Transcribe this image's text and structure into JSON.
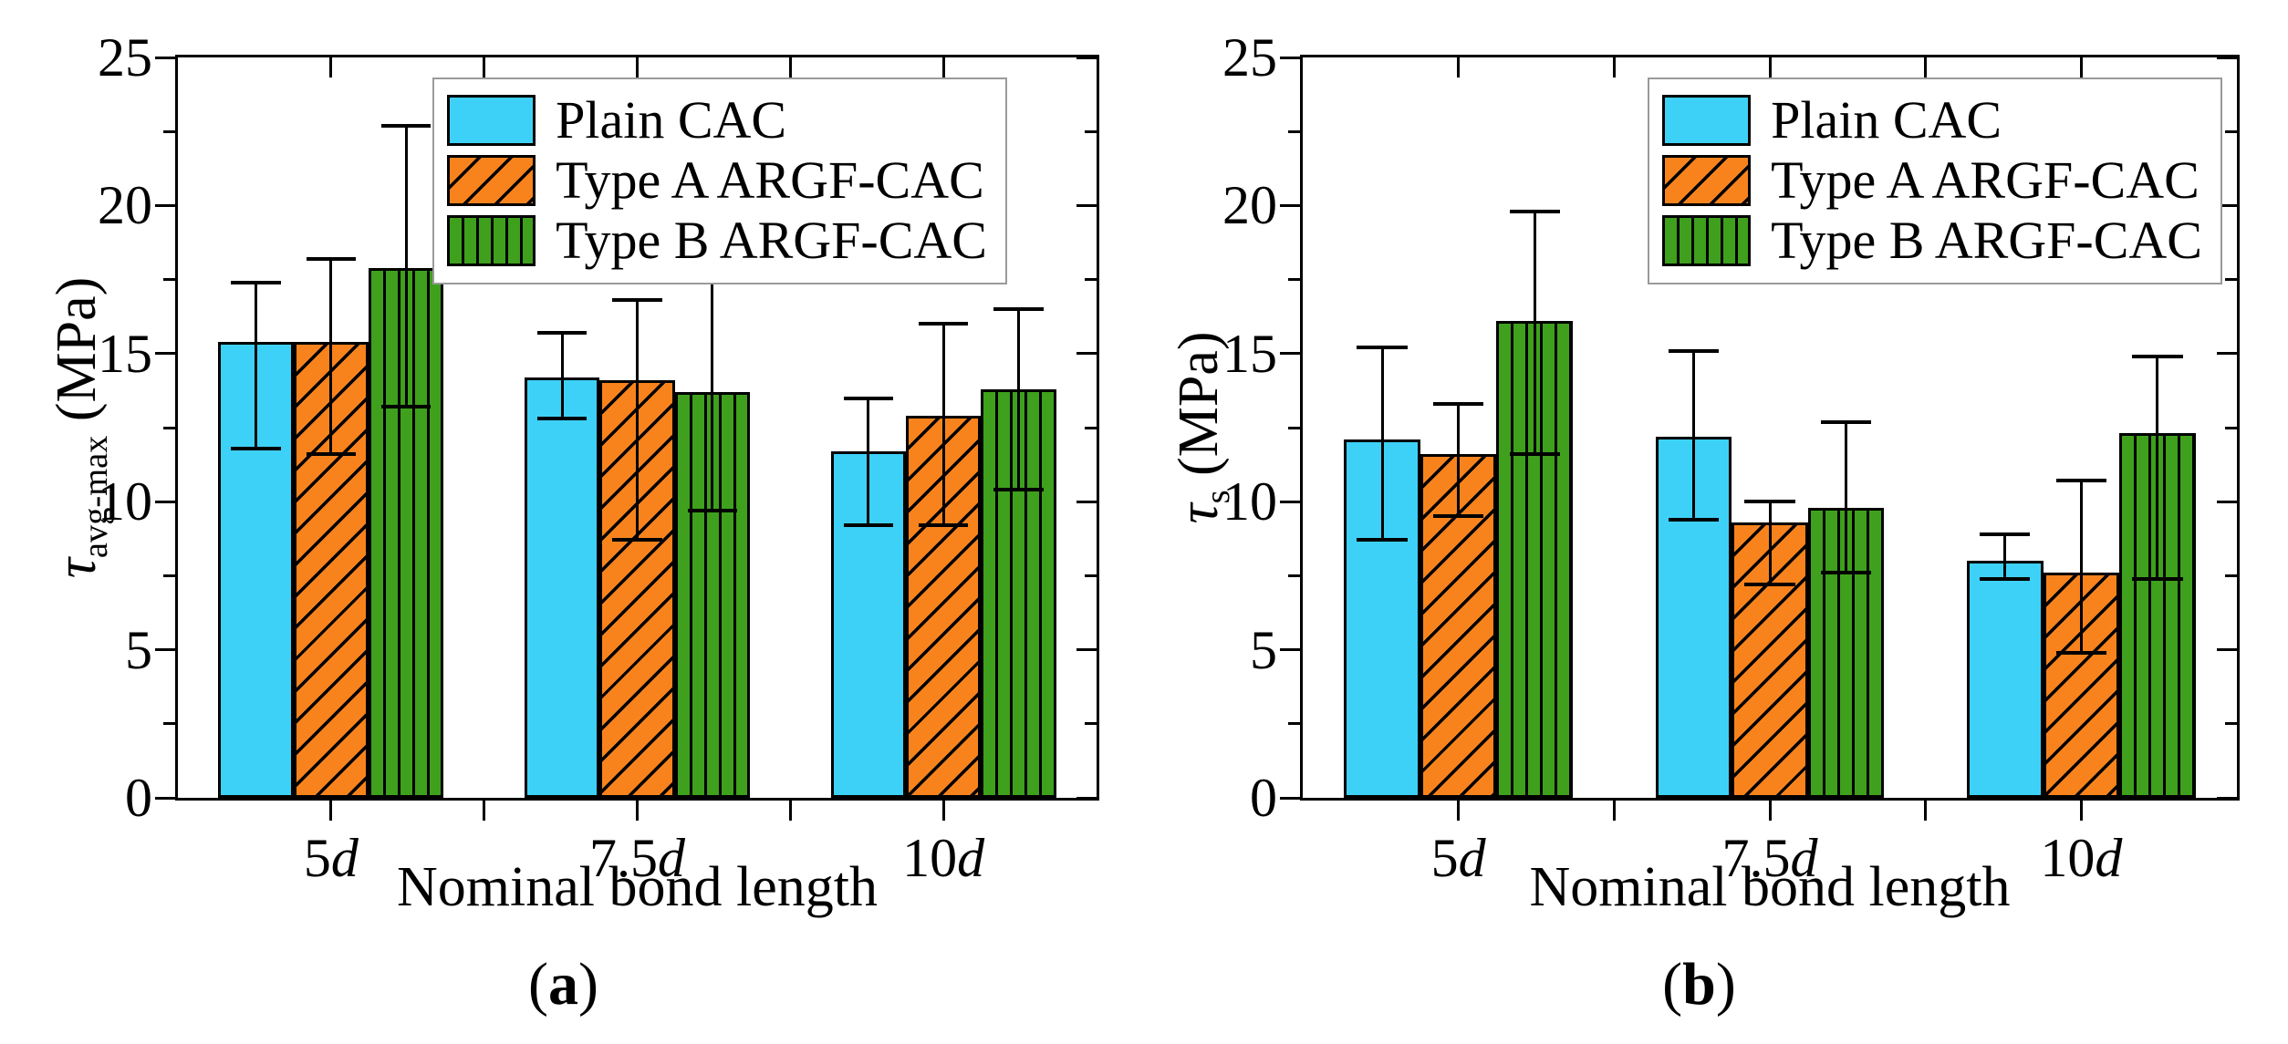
{
  "figure": {
    "legend": [
      "Plain CAC",
      "Type A ARGF-CAC",
      "Type B ARGF-CAC"
    ],
    "panels": [
      {
        "caption_open": "(",
        "caption_letter": "a",
        "caption_close": ")",
        "y_axis": {
          "sym": "τ",
          "sub": "avg-max",
          "unit": " (MPa)"
        },
        "x_axis_title": "Nominal bond length"
      },
      {
        "caption_open": "(",
        "caption_letter": "b",
        "caption_close": ")",
        "y_axis": {
          "sym": "τ",
          "sub": "s",
          "unit": " (MPa)"
        },
        "x_axis_title": "Nominal bond length"
      }
    ]
  },
  "chart_data": [
    {
      "type": "bar",
      "title": "",
      "xlabel": "Nominal bond length",
      "ylabel": "tau_avg-max (MPa)",
      "ylim": [
        0,
        25
      ],
      "ytick_major": 5,
      "ytick_minor": 2.5,
      "grid": false,
      "legend_position": "top-right-inside",
      "categories": [
        "5d",
        "7.5d",
        "10d"
      ],
      "series": [
        {
          "name": "Plain CAC",
          "color": "#3ED1F8",
          "hatch": "none",
          "values": [
            15.4,
            14.2,
            11.7
          ],
          "err_low": [
            11.8,
            12.8,
            9.2
          ],
          "err_high": [
            17.4,
            15.7,
            13.5
          ]
        },
        {
          "name": "Type A ARGF-CAC",
          "color": "#F8831D",
          "hatch": "diagonal",
          "values": [
            15.4,
            14.1,
            12.9
          ],
          "err_low": [
            11.6,
            8.7,
            9.2
          ],
          "err_high": [
            18.2,
            16.8,
            16.0
          ]
        },
        {
          "name": "Type B ARGF-CAC",
          "color": "#3EA01C",
          "hatch": "vertical",
          "values": [
            17.9,
            13.7,
            13.8
          ],
          "err_low": [
            13.2,
            9.7,
            10.4
          ],
          "err_high": [
            22.7,
            17.5,
            16.5
          ]
        }
      ]
    },
    {
      "type": "bar",
      "title": "",
      "xlabel": "Nominal bond length",
      "ylabel": "tau_s (MPa)",
      "ylim": [
        0,
        25
      ],
      "ytick_major": 5,
      "ytick_minor": 2.5,
      "grid": false,
      "legend_position": "top-right-inside",
      "categories": [
        "5d",
        "7.5d",
        "10d"
      ],
      "series": [
        {
          "name": "Plain CAC",
          "color": "#3ED1F8",
          "hatch": "none",
          "values": [
            12.1,
            12.2,
            8.0
          ],
          "err_low": [
            8.7,
            9.4,
            7.4
          ],
          "err_high": [
            15.2,
            15.1,
            8.9
          ]
        },
        {
          "name": "Type A ARGF-CAC",
          "color": "#F8831D",
          "hatch": "diagonal",
          "values": [
            11.6,
            9.3,
            7.6
          ],
          "err_low": [
            9.5,
            7.2,
            4.9
          ],
          "err_high": [
            13.3,
            10.0,
            10.7
          ]
        },
        {
          "name": "Type B ARGF-CAC",
          "color": "#3EA01C",
          "hatch": "vertical",
          "values": [
            16.1,
            9.8,
            12.3
          ],
          "err_low": [
            11.6,
            7.6,
            7.4
          ],
          "err_high": [
            19.8,
            12.7,
            14.9
          ]
        }
      ]
    }
  ]
}
